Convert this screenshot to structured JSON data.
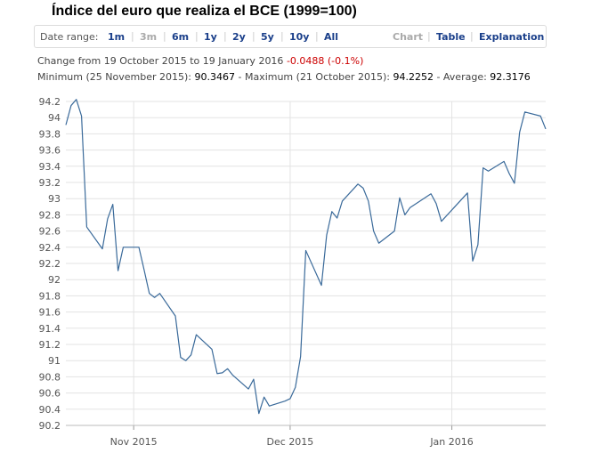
{
  "title": "Índice del euro que realiza el BCE (1999=100)",
  "toolbar": {
    "date_range_label": "Date range:",
    "ranges": [
      "1m",
      "3m",
      "6m",
      "1y",
      "2y",
      "5y",
      "10y",
      "All"
    ],
    "disabled_range": "3m",
    "views": [
      "Chart",
      "Table",
      "Explanation"
    ],
    "active_view": "Chart"
  },
  "summary": {
    "change_prefix": "Change from 19 October 2015 to 19 January 2016",
    "change_value": "-0.0488 (-0.1%)",
    "minimum_label": "Minimum (25 November 2015):",
    "minimum_value": "90.3467",
    "maximum_label": "- Maximum (21 October 2015):",
    "maximum_value": "94.2252",
    "average_label": "- Average:",
    "average_value": "92.3176"
  },
  "chart_data": {
    "type": "line",
    "colors": {
      "line": "#3a6a9a",
      "grid": "#e3e3e3",
      "axis_text": "#555555"
    },
    "ylim": [
      90.2,
      94.2
    ],
    "yticks": [
      90.2,
      90.4,
      90.6,
      90.8,
      91,
      91.2,
      91.4,
      91.6,
      91.8,
      92,
      92.2,
      92.4,
      92.6,
      92.8,
      93,
      93.2,
      93.4,
      93.6,
      93.8,
      94,
      94.2
    ],
    "xlim": [
      "2015-10-19",
      "2016-01-19"
    ],
    "xticks": [
      {
        "date": "2015-11-01",
        "label": "Nov 2015"
      },
      {
        "date": "2015-12-01",
        "label": "Dec 2015"
      },
      {
        "date": "2016-01-01",
        "label": "Jan 2016"
      }
    ],
    "grid": true,
    "series": [
      {
        "points": [
          [
            "2015-10-19",
            93.91
          ],
          [
            "2015-10-20",
            94.15
          ],
          [
            "2015-10-21",
            94.2252
          ],
          [
            "2015-10-22",
            94.02
          ],
          [
            "2015-10-23",
            92.65
          ],
          [
            "2015-10-26",
            92.38
          ],
          [
            "2015-10-27",
            92.75
          ],
          [
            "2015-10-28",
            92.93
          ],
          [
            "2015-10-29",
            92.11
          ],
          [
            "2015-10-30",
            92.4
          ],
          [
            "2015-11-02",
            92.4
          ],
          [
            "2015-11-03",
            92.12
          ],
          [
            "2015-11-04",
            91.83
          ],
          [
            "2015-11-05",
            91.78
          ],
          [
            "2015-11-06",
            91.83
          ],
          [
            "2015-11-09",
            91.55
          ],
          [
            "2015-11-10",
            91.04
          ],
          [
            "2015-11-11",
            91.0
          ],
          [
            "2015-11-12",
            91.07
          ],
          [
            "2015-11-13",
            91.32
          ],
          [
            "2015-11-16",
            91.14
          ],
          [
            "2015-11-17",
            90.84
          ],
          [
            "2015-11-18",
            90.85
          ],
          [
            "2015-11-19",
            90.9
          ],
          [
            "2015-11-20",
            90.82
          ],
          [
            "2015-11-23",
            90.65
          ],
          [
            "2015-11-24",
            90.77
          ],
          [
            "2015-11-25",
            90.3467
          ],
          [
            "2015-11-26",
            90.55
          ],
          [
            "2015-11-27",
            90.44
          ],
          [
            "2015-11-30",
            90.5
          ],
          [
            "2015-12-01",
            90.53
          ],
          [
            "2015-12-02",
            90.67
          ],
          [
            "2015-12-03",
            91.05
          ],
          [
            "2015-12-04",
            92.36
          ],
          [
            "2015-12-07",
            91.93
          ],
          [
            "2015-12-08",
            92.55
          ],
          [
            "2015-12-09",
            92.84
          ],
          [
            "2015-12-10",
            92.76
          ],
          [
            "2015-12-11",
            92.97
          ],
          [
            "2015-12-14",
            93.18
          ],
          [
            "2015-12-15",
            93.13
          ],
          [
            "2015-12-16",
            92.97
          ],
          [
            "2015-12-17",
            92.6
          ],
          [
            "2015-12-18",
            92.45
          ],
          [
            "2015-12-21",
            92.6
          ],
          [
            "2015-12-22",
            93.01
          ],
          [
            "2015-12-23",
            92.8
          ],
          [
            "2015-12-24",
            92.89
          ],
          [
            "2015-12-28",
            93.06
          ],
          [
            "2015-12-29",
            92.94
          ],
          [
            "2015-12-30",
            92.72
          ],
          [
            "2016-01-04",
            93.07
          ],
          [
            "2016-01-05",
            92.23
          ],
          [
            "2016-01-06",
            92.43
          ],
          [
            "2016-01-07",
            93.38
          ],
          [
            "2016-01-08",
            93.34
          ],
          [
            "2016-01-11",
            93.46
          ],
          [
            "2016-01-12",
            93.31
          ],
          [
            "2016-01-13",
            93.19
          ],
          [
            "2016-01-14",
            93.82
          ],
          [
            "2016-01-15",
            94.07
          ],
          [
            "2016-01-18",
            94.02
          ],
          [
            "2016-01-19",
            93.86
          ]
        ]
      }
    ]
  }
}
